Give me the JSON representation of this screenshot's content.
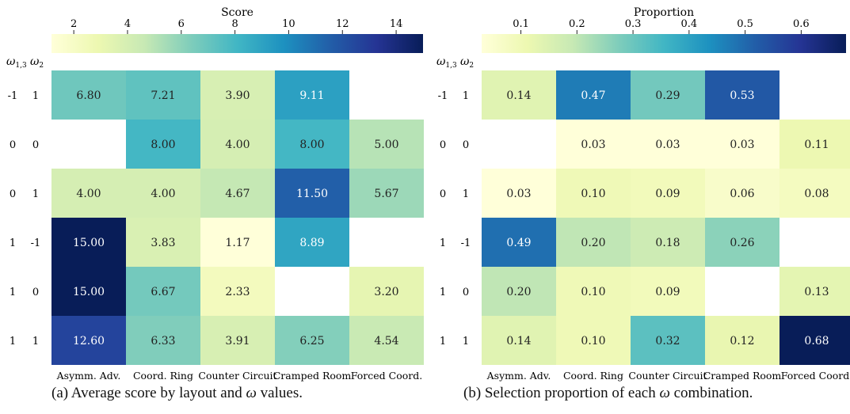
{
  "chart_data": [
    {
      "type": "heatmap",
      "caption_prefix": "(a) Average score by layout and",
      "caption_symbol": "ω",
      "caption_suffix": " values.",
      "colorbar_label": "Score",
      "colorbar_range": [
        1.17,
        15.0
      ],
      "colorbar_ticks": [
        "2",
        "4",
        "6",
        "8",
        "10",
        "12",
        "14"
      ],
      "colorbar_tick_values": [
        2,
        4,
        6,
        8,
        10,
        12,
        14
      ],
      "row_header_1": "ω",
      "row_header_1_sub": "1,3",
      "row_header_2": "ω",
      "row_header_2_sub": "2",
      "row_labels": [
        [
          "-1",
          "1"
        ],
        [
          "0",
          "0"
        ],
        [
          "0",
          "1"
        ],
        [
          "1",
          "-1"
        ],
        [
          "1",
          "0"
        ],
        [
          "1",
          "1"
        ]
      ],
      "columns": [
        "Asymm. Adv.",
        "Coord. Ring",
        "Counter Circuit",
        "Cramped Room",
        "Forced Coord."
      ],
      "cells": [
        [
          "6.80",
          "7.21",
          "3.90",
          "9.11",
          null
        ],
        [
          null,
          "8.00",
          "4.00",
          "8.00",
          "5.00"
        ],
        [
          "4.00",
          "4.00",
          "4.67",
          "11.50",
          "5.67"
        ],
        [
          "15.00",
          "3.83",
          "1.17",
          "8.89",
          null
        ],
        [
          "15.00",
          "6.67",
          "2.33",
          null,
          "3.20"
        ],
        [
          "12.60",
          "6.33",
          "3.91",
          "6.25",
          "4.54"
        ]
      ]
    },
    {
      "type": "heatmap",
      "caption_prefix": "(b) Selection proportion of each",
      "caption_symbol": "ω",
      "caption_suffix": " combination.",
      "colorbar_label": "Proportion",
      "colorbar_range": [
        0.03,
        0.68
      ],
      "colorbar_ticks": [
        "0.1",
        "0.2",
        "0.3",
        "0.4",
        "0.5",
        "0.6"
      ],
      "colorbar_tick_values": [
        0.1,
        0.2,
        0.3,
        0.4,
        0.5,
        0.6
      ],
      "row_header_1": "ω",
      "row_header_1_sub": "1,3",
      "row_header_2": "ω",
      "row_header_2_sub": "2",
      "row_labels": [
        [
          "-1",
          "1"
        ],
        [
          "0",
          "0"
        ],
        [
          "0",
          "1"
        ],
        [
          "1",
          "-1"
        ],
        [
          "1",
          "0"
        ],
        [
          "1",
          "1"
        ]
      ],
      "columns": [
        "Asymm. Adv.",
        "Coord. Ring",
        "Counter Circuit",
        "Cramped Room",
        "Forced Coord."
      ],
      "cells": [
        [
          "0.14",
          "0.47",
          "0.29",
          "0.53",
          null
        ],
        [
          null,
          "0.03",
          "0.03",
          "0.03",
          "0.11"
        ],
        [
          "0.03",
          "0.10",
          "0.09",
          "0.06",
          "0.08"
        ],
        [
          "0.49",
          "0.20",
          "0.18",
          "0.26",
          null
        ],
        [
          "0.20",
          "0.10",
          "0.09",
          null,
          "0.13"
        ],
        [
          "0.14",
          "0.10",
          "0.32",
          "0.12",
          "0.68"
        ]
      ]
    }
  ]
}
